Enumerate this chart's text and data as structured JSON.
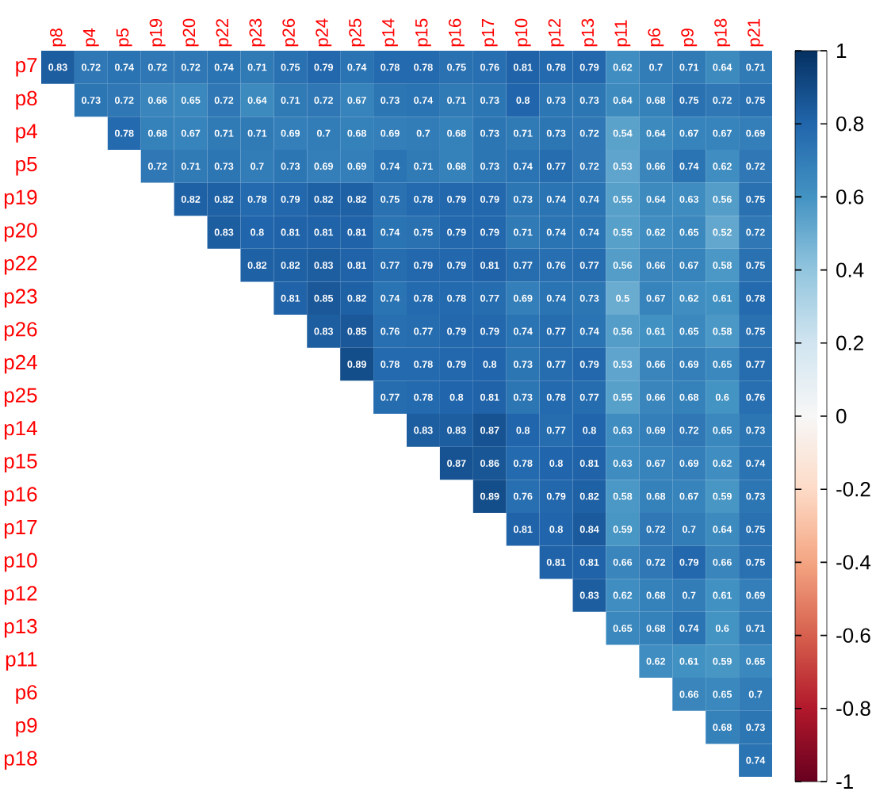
{
  "chart_data": {
    "type": "heatmap",
    "categories": [
      "p8",
      "p4",
      "p5",
      "p19",
      "p20",
      "p22",
      "p23",
      "p26",
      "p24",
      "p25",
      "p14",
      "p15",
      "p16",
      "p17",
      "p10",
      "p12",
      "p13",
      "p11",
      "p6",
      "p9",
      "p18",
      "p21"
    ],
    "y_categories": [
      "p7",
      "p8",
      "p4",
      "p5",
      "p19",
      "p20",
      "p22",
      "p23",
      "p26",
      "p24",
      "p25",
      "p14",
      "p15",
      "p16",
      "p17",
      "p10",
      "p12",
      "p13",
      "p11",
      "p6",
      "p9",
      "p18"
    ],
    "cells": [
      [
        0.83,
        0.72,
        0.74,
        0.72,
        0.72,
        0.74,
        0.71,
        0.75,
        0.79,
        0.74,
        0.78,
        0.78,
        0.75,
        0.76,
        0.81,
        0.78,
        0.79,
        0.62,
        0.7,
        0.71,
        0.64,
        0.71
      ],
      [
        null,
        0.73,
        0.72,
        0.66,
        0.65,
        0.72,
        0.64,
        0.71,
        0.72,
        0.67,
        0.73,
        0.74,
        0.71,
        0.73,
        0.8,
        0.73,
        0.73,
        0.64,
        0.68,
        0.75,
        0.72,
        0.75
      ],
      [
        null,
        null,
        0.78,
        0.68,
        0.67,
        0.71,
        0.71,
        0.69,
        0.7,
        0.68,
        0.69,
        0.7,
        0.68,
        0.73,
        0.71,
        0.73,
        0.72,
        0.54,
        0.64,
        0.67,
        0.67,
        0.69
      ],
      [
        null,
        null,
        null,
        0.72,
        0.71,
        0.73,
        0.7,
        0.73,
        0.69,
        0.69,
        0.74,
        0.71,
        0.68,
        0.73,
        0.74,
        0.77,
        0.72,
        0.53,
        0.66,
        0.74,
        0.62,
        0.72
      ],
      [
        null,
        null,
        null,
        null,
        0.82,
        0.82,
        0.78,
        0.79,
        0.82,
        0.82,
        0.75,
        0.78,
        0.79,
        0.79,
        0.73,
        0.74,
        0.74,
        0.55,
        0.64,
        0.63,
        0.56,
        0.75
      ],
      [
        null,
        null,
        null,
        null,
        null,
        0.83,
        0.8,
        0.81,
        0.81,
        0.81,
        0.74,
        0.75,
        0.79,
        0.79,
        0.71,
        0.74,
        0.74,
        0.55,
        0.62,
        0.65,
        0.52,
        0.72
      ],
      [
        null,
        null,
        null,
        null,
        null,
        null,
        0.82,
        0.82,
        0.83,
        0.81,
        0.77,
        0.79,
        0.79,
        0.81,
        0.77,
        0.76,
        0.77,
        0.56,
        0.66,
        0.67,
        0.58,
        0.75
      ],
      [
        null,
        null,
        null,
        null,
        null,
        null,
        null,
        0.81,
        0.85,
        0.82,
        0.74,
        0.78,
        0.78,
        0.77,
        0.69,
        0.74,
        0.73,
        0.5,
        0.67,
        0.62,
        0.61,
        0.78
      ],
      [
        null,
        null,
        null,
        null,
        null,
        null,
        null,
        null,
        0.83,
        0.85,
        0.76,
        0.77,
        0.79,
        0.79,
        0.74,
        0.77,
        0.74,
        0.56,
        0.61,
        0.65,
        0.58,
        0.75
      ],
      [
        null,
        null,
        null,
        null,
        null,
        null,
        null,
        null,
        null,
        0.89,
        0.78,
        0.78,
        0.79,
        0.8,
        0.73,
        0.77,
        0.79,
        0.53,
        0.66,
        0.69,
        0.65,
        0.77
      ],
      [
        null,
        null,
        null,
        null,
        null,
        null,
        null,
        null,
        null,
        null,
        0.77,
        0.78,
        0.8,
        0.81,
        0.73,
        0.78,
        0.77,
        0.55,
        0.66,
        0.68,
        0.6,
        0.76
      ],
      [
        null,
        null,
        null,
        null,
        null,
        null,
        null,
        null,
        null,
        null,
        null,
        0.83,
        0.83,
        0.87,
        0.8,
        0.77,
        0.8,
        0.63,
        0.69,
        0.72,
        0.65,
        0.73
      ],
      [
        null,
        null,
        null,
        null,
        null,
        null,
        null,
        null,
        null,
        null,
        null,
        null,
        0.87,
        0.86,
        0.78,
        0.8,
        0.81,
        0.63,
        0.67,
        0.69,
        0.62,
        0.74
      ],
      [
        null,
        null,
        null,
        null,
        null,
        null,
        null,
        null,
        null,
        null,
        null,
        null,
        null,
        0.89,
        0.76,
        0.79,
        0.82,
        0.58,
        0.68,
        0.67,
        0.59,
        0.73
      ],
      [
        null,
        null,
        null,
        null,
        null,
        null,
        null,
        null,
        null,
        null,
        null,
        null,
        null,
        null,
        0.81,
        0.8,
        0.84,
        0.59,
        0.72,
        0.7,
        0.64,
        0.75
      ],
      [
        null,
        null,
        null,
        null,
        null,
        null,
        null,
        null,
        null,
        null,
        null,
        null,
        null,
        null,
        null,
        0.81,
        0.81,
        0.66,
        0.72,
        0.79,
        0.66,
        0.75
      ],
      [
        null,
        null,
        null,
        null,
        null,
        null,
        null,
        null,
        null,
        null,
        null,
        null,
        null,
        null,
        null,
        null,
        0.83,
        0.62,
        0.68,
        0.7,
        0.61,
        0.69
      ],
      [
        null,
        null,
        null,
        null,
        null,
        null,
        null,
        null,
        null,
        null,
        null,
        null,
        null,
        null,
        null,
        null,
        null,
        0.65,
        0.68,
        0.74,
        0.6,
        0.71
      ],
      [
        null,
        null,
        null,
        null,
        null,
        null,
        null,
        null,
        null,
        null,
        null,
        null,
        null,
        null,
        null,
        null,
        null,
        null,
        0.62,
        0.61,
        0.59,
        0.65
      ],
      [
        null,
        null,
        null,
        null,
        null,
        null,
        null,
        null,
        null,
        null,
        null,
        null,
        null,
        null,
        null,
        null,
        null,
        null,
        null,
        0.66,
        0.65,
        0.7
      ],
      [
        null,
        null,
        null,
        null,
        null,
        null,
        null,
        null,
        null,
        null,
        null,
        null,
        null,
        null,
        null,
        null,
        null,
        null,
        null,
        null,
        0.68,
        0.73
      ],
      [
        null,
        null,
        null,
        null,
        null,
        null,
        null,
        null,
        null,
        null,
        null,
        null,
        null,
        null,
        null,
        null,
        null,
        null,
        null,
        null,
        null,
        0.74
      ]
    ],
    "clim": [
      -1,
      1
    ],
    "cticks": [
      -1,
      -0.8,
      -0.6,
      -0.4,
      -0.2,
      0,
      0.2,
      0.4,
      0.6,
      0.8,
      1
    ],
    "data_labels": true
  }
}
